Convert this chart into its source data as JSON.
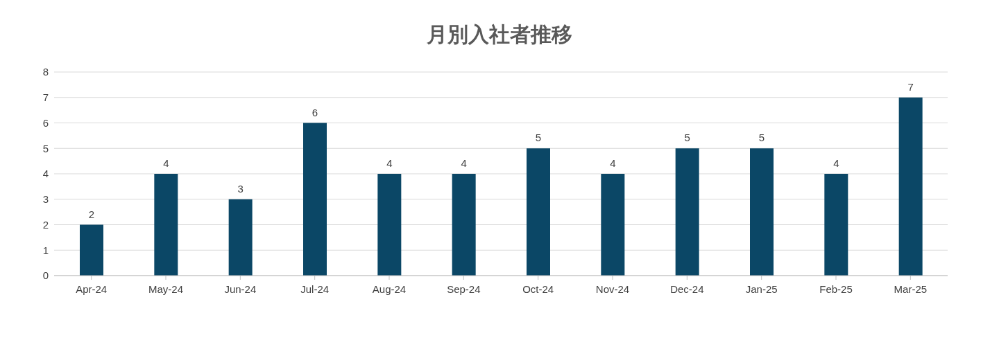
{
  "chart_data": {
    "type": "bar",
    "title": "月別入社者推移",
    "categories": [
      "Apr-24",
      "May-24",
      "Jun-24",
      "Jul-24",
      "Aug-24",
      "Sep-24",
      "Oct-24",
      "Nov-24",
      "Dec-24",
      "Jan-25",
      "Feb-25",
      "Mar-25"
    ],
    "values": [
      2,
      4,
      3,
      6,
      4,
      4,
      5,
      4,
      5,
      5,
      4,
      7
    ],
    "color": "#0b4766",
    "ylim": [
      0,
      8
    ],
    "yticks": [
      0,
      1,
      2,
      3,
      4,
      5,
      6,
      7,
      8
    ],
    "grid": "y",
    "data_labels": true
  }
}
